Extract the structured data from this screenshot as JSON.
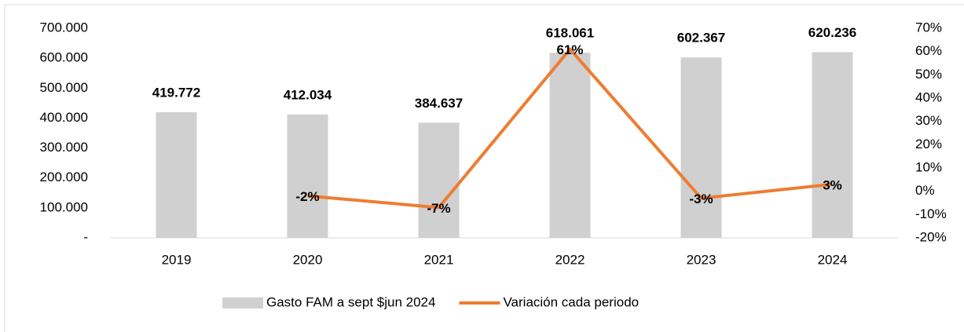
{
  "chart_data": {
    "type": "bar",
    "categories": [
      "2019",
      "2020",
      "2021",
      "2022",
      "2023",
      "2024"
    ],
    "series": [
      {
        "name": "Gasto FAM a sept $jun 2024",
        "type": "bar",
        "color": "#d0d0d0",
        "values": [
          419772,
          412034,
          384637,
          618061,
          602367,
          620236
        ],
        "value_labels": [
          "419.772",
          "412.034",
          "384.637",
          "618.061",
          "602.367",
          "620.236"
        ]
      },
      {
        "name": "Variación cada periodo",
        "type": "line",
        "axis": "y2",
        "color": "#ed7d31",
        "values": [
          null,
          -2,
          -7,
          61,
          -3,
          3
        ],
        "value_labels": [
          null,
          "-2%",
          "-7%",
          "61%",
          "-3%",
          "3%"
        ]
      }
    ],
    "ylim": [
      0,
      700000
    ],
    "yticks": [
      {
        "value": 0,
        "label": "-"
      },
      {
        "value": 100000,
        "label": "100.000"
      },
      {
        "value": 200000,
        "label": "200.000"
      },
      {
        "value": 300000,
        "label": "300.000"
      },
      {
        "value": 400000,
        "label": "400.000"
      },
      {
        "value": 500000,
        "label": "500.000"
      },
      {
        "value": 600000,
        "label": "600.000"
      },
      {
        "value": 700000,
        "label": "700.000"
      }
    ],
    "y2lim": [
      -20,
      70
    ],
    "y2ticks": [
      {
        "value": -20,
        "label": "-20%"
      },
      {
        "value": -10,
        "label": "-10%"
      },
      {
        "value": 0,
        "label": "0%"
      },
      {
        "value": 10,
        "label": "10%"
      },
      {
        "value": 20,
        "label": "20%"
      },
      {
        "value": 30,
        "label": "30%"
      },
      {
        "value": 40,
        "label": "40%"
      },
      {
        "value": 50,
        "label": "50%"
      },
      {
        "value": 60,
        "label": "60%"
      },
      {
        "value": 70,
        "label": "70%"
      }
    ],
    "grid": false,
    "legend": "bottom"
  }
}
